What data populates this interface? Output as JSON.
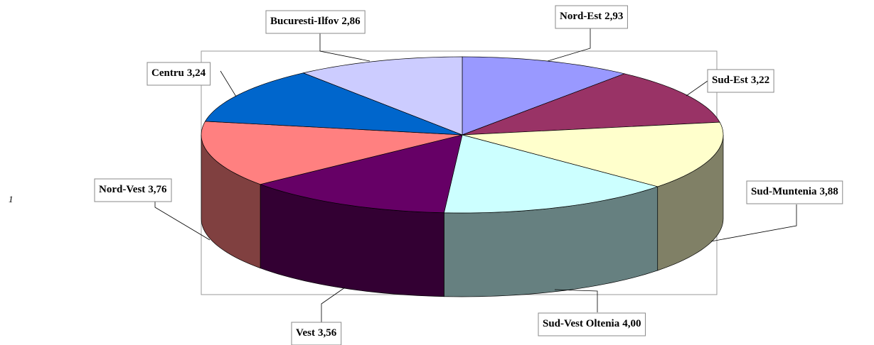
{
  "chart_data": {
    "type": "pie3d",
    "categories": [
      "Nord-Est",
      "Sud-Est",
      "Sud-Muntenia",
      "Sud-Vest Oltenia",
      "Vest",
      "Nord-Vest",
      "Centru",
      "Bucuresti-Ilfov"
    ],
    "values": [
      2.93,
      3.22,
      3.88,
      4.0,
      3.56,
      3.76,
      3.24,
      2.86
    ],
    "value_labels": [
      "2,93",
      "3,22",
      "3,88",
      "4,00",
      "3,56",
      "3,76",
      "3,24",
      "2,86"
    ],
    "colors": [
      "#9999ff",
      "#993366",
      "#ffffcc",
      "#ccffff",
      "#660066",
      "#ff8080",
      "#0066cc",
      "#ccccff"
    ],
    "annotations": [
      "1"
    ]
  }
}
